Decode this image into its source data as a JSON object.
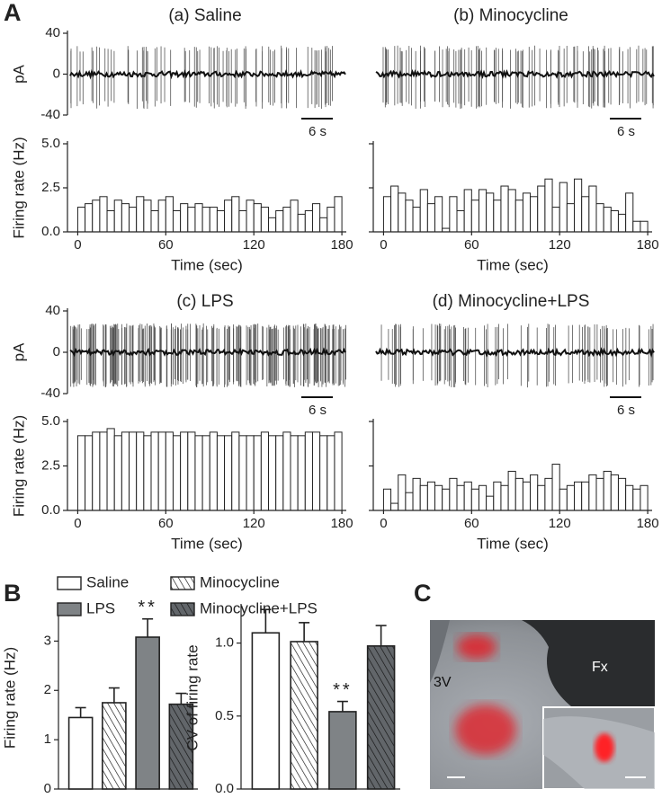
{
  "panel_labels": {
    "a": "A",
    "b": "B",
    "c": "C"
  },
  "image": {
    "labels": [
      "3V",
      "Fx"
    ]
  },
  "chart_data": [
    {
      "type": "trace",
      "title": "(a) Saline",
      "ylabel": "pA",
      "ylim": [
        -40,
        40
      ],
      "yticks": [
        -40,
        0,
        40
      ],
      "scale_bar_label": "6 s"
    },
    {
      "type": "histogram",
      "ylabel": "Firing rate (Hz)",
      "xlabel": "Time (sec)",
      "color": "#ffffff",
      "bins": [
        0,
        5,
        10,
        15,
        20,
        25,
        30,
        35,
        40,
        45,
        50,
        55,
        60,
        65,
        70,
        75,
        80,
        85,
        90,
        95,
        100,
        105,
        110,
        115,
        120,
        125,
        130,
        135,
        140,
        145,
        150,
        155,
        160,
        165,
        170,
        175,
        180
      ],
      "values": [
        1.4,
        1.6,
        1.8,
        2.0,
        1.2,
        1.8,
        1.6,
        1.4,
        2.0,
        1.8,
        1.2,
        1.8,
        2.0,
        1.2,
        1.6,
        1.4,
        1.6,
        1.4,
        1.4,
        1.2,
        1.8,
        2.0,
        1.2,
        1.8,
        1.6,
        1.4,
        0.8,
        1.2,
        1.4,
        1.8,
        1.0,
        1.2,
        1.6,
        0.8,
        1.4,
        2.0
      ],
      "xlim": [
        -7,
        183
      ],
      "xticks": [
        0,
        60,
        120,
        180
      ],
      "ylim": [
        0,
        5
      ],
      "yticks": [
        {
          "value": 0,
          "label": "0.0"
        },
        2.5,
        {
          "value": 5,
          "label": "5.0"
        }
      ]
    },
    {
      "type": "trace",
      "title": "(b) Minocycline",
      "ylim": [
        -40,
        40
      ],
      "scale_bar_label": "6 s"
    },
    {
      "type": "histogram",
      "xlabel": "Time (sec)",
      "color": "#ffffff",
      "bins": [
        0,
        5,
        10,
        15,
        20,
        25,
        30,
        35,
        40,
        45,
        50,
        55,
        60,
        65,
        70,
        75,
        80,
        85,
        90,
        95,
        100,
        105,
        110,
        115,
        120,
        125,
        130,
        135,
        140,
        145,
        150,
        155,
        160,
        165,
        170,
        175,
        180
      ],
      "values": [
        2.0,
        2.6,
        2.2,
        1.8,
        1.4,
        2.4,
        1.6,
        2.0,
        0.2,
        2.0,
        1.2,
        2.4,
        1.8,
        2.4,
        2.2,
        1.8,
        2.6,
        2.4,
        1.8,
        2.2,
        2.0,
        2.6,
        3.0,
        1.4,
        2.8,
        1.6,
        3.0,
        2.0,
        2.6,
        1.6,
        1.4,
        1.2,
        1.0,
        2.2,
        0.6,
        0.6
      ],
      "xlim": [
        -7,
        183
      ],
      "xticks": [
        0,
        60,
        120,
        180
      ],
      "ylim": [
        0,
        5
      ],
      "yticks": [
        0,
        2.5,
        5
      ]
    },
    {
      "type": "trace",
      "title": "(c) LPS",
      "ylabel": "pA",
      "ylim": [
        -40,
        40
      ],
      "yticks": [
        -40,
        0,
        40
      ],
      "scale_bar_label": "6 s"
    },
    {
      "type": "histogram",
      "ylabel": "Firing rate (Hz)",
      "xlabel": "Time (sec)",
      "color": "#ffffff",
      "bins": [
        0,
        5,
        10,
        15,
        20,
        25,
        30,
        35,
        40,
        45,
        50,
        55,
        60,
        65,
        70,
        75,
        80,
        85,
        90,
        95,
        100,
        105,
        110,
        115,
        120,
        125,
        130,
        135,
        140,
        145,
        150,
        155,
        160,
        165,
        170,
        175,
        180
      ],
      "values": [
        4.2,
        4.2,
        4.4,
        4.4,
        4.6,
        4.2,
        4.4,
        4.4,
        4.4,
        4.2,
        4.4,
        4.4,
        4.4,
        4.2,
        4.4,
        4.4,
        4.2,
        4.2,
        4.4,
        4.2,
        4.2,
        4.4,
        4.2,
        4.2,
        4.2,
        4.4,
        4.2,
        4.2,
        4.4,
        4.2,
        4.2,
        4.4,
        4.4,
        4.2,
        4.2,
        4.4
      ],
      "xlim": [
        -7,
        183
      ],
      "xticks": [
        0,
        60,
        120,
        180
      ],
      "ylim": [
        0,
        5
      ],
      "yticks": [
        {
          "value": 0,
          "label": "0.0"
        },
        2.5,
        {
          "value": 5,
          "label": "5.0"
        }
      ]
    },
    {
      "type": "trace",
      "title": "(d) Minocycline+LPS",
      "ylim": [
        -40,
        40
      ],
      "scale_bar_label": "6 s"
    },
    {
      "type": "histogram",
      "xlabel": "Time (sec)",
      "color": "#ffffff",
      "bins": [
        0,
        5,
        10,
        15,
        20,
        25,
        30,
        35,
        40,
        45,
        50,
        55,
        60,
        65,
        70,
        75,
        80,
        85,
        90,
        95,
        100,
        105,
        110,
        115,
        120,
        125,
        130,
        135,
        140,
        145,
        150,
        155,
        160,
        165,
        170,
        175,
        180
      ],
      "values": [
        1.2,
        0.4,
        2.0,
        1.0,
        1.8,
        1.4,
        1.6,
        1.4,
        1.2,
        1.8,
        1.4,
        1.6,
        1.2,
        1.4,
        0.8,
        1.6,
        1.4,
        2.2,
        1.8,
        1.6,
        2.0,
        1.4,
        1.8,
        2.6,
        1.2,
        1.4,
        1.6,
        1.6,
        2.0,
        1.8,
        2.2,
        2.0,
        1.8,
        1.4,
        1.2,
        1.4
      ],
      "xlim": [
        -7,
        183
      ],
      "xticks": [
        0,
        60,
        120,
        180
      ],
      "ylim": [
        0,
        5
      ],
      "yticks": [
        0,
        2.5,
        5
      ]
    },
    {
      "type": "bar",
      "ylabel": "Firing rate (Hz)",
      "legend": true,
      "categories": [
        "Saline",
        "Minocycline",
        "LPS",
        "Minocycline+LPS"
      ],
      "colors": [
        "#ffffff",
        "#ffffff",
        "#7f8386",
        "#62666a"
      ],
      "hatch": [
        false,
        true,
        false,
        true
      ],
      "values": [
        1.45,
        1.75,
        3.08,
        1.72
      ],
      "errors": [
        0.2,
        0.3,
        0.37,
        0.22
      ],
      "annotations": [
        {
          "category": "LPS",
          "text": "**"
        }
      ],
      "ylim": [
        0,
        3.7
      ],
      "yticks": [
        0,
        1,
        2,
        3
      ]
    },
    {
      "type": "bar",
      "ylabel": "CV of firing rate",
      "colors": [
        "#ffffff",
        "#ffffff",
        "#7f8386",
        "#62666a"
      ],
      "hatch": [
        false,
        true,
        false,
        true
      ],
      "values": [
        1.07,
        1.01,
        0.53,
        0.98
      ],
      "errors": [
        0.16,
        0.13,
        0.07,
        0.14
      ],
      "annotations": [
        {
          "category": "LPS",
          "text": "**"
        }
      ],
      "ylim": [
        0,
        1.25
      ],
      "yticks": [
        {
          "value": 0,
          "label": "0.0"
        },
        0.5,
        {
          "value": 1,
          "label": "1.0"
        }
      ]
    }
  ]
}
